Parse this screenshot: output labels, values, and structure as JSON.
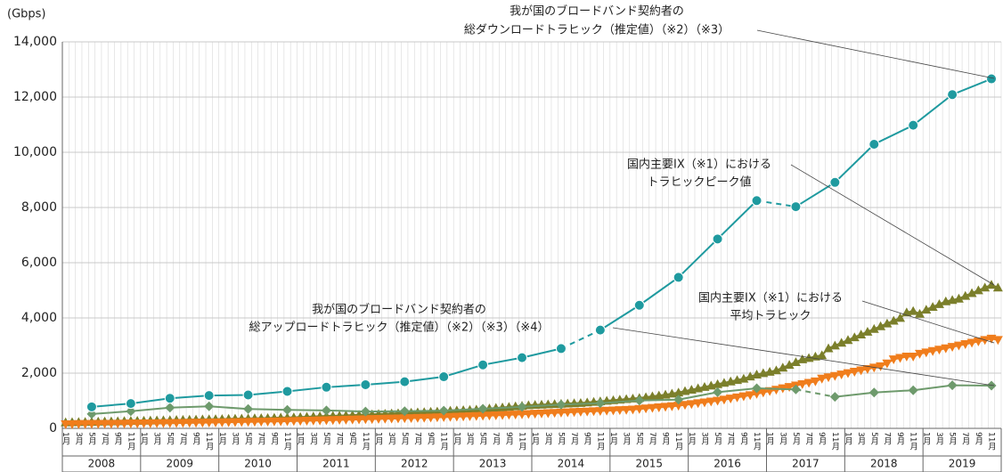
{
  "chart_data": {
    "type": "line",
    "unit": "(Gbps)",
    "ylim": [
      0,
      14000
    ],
    "yticks": [
      0,
      {
        "value": 2000,
        "label": "2,000"
      },
      {
        "value": 4000,
        "label": "4,000"
      },
      {
        "value": 6000,
        "label": "6,000"
      },
      {
        "value": 8000,
        "label": "8,000"
      },
      {
        "value": 10000,
        "label": "10,000"
      },
      {
        "value": 12000,
        "label": "12,000"
      },
      {
        "value": 14000,
        "label": "14,000"
      }
    ],
    "grid": true,
    "xlim": [
      "2008-01",
      "2019-12"
    ],
    "month_labels": [
      "1月",
      "3月",
      "5月",
      "7月",
      "9月",
      "11月"
    ],
    "years": [
      "2008",
      "2009",
      "2010",
      "2011",
      "2012",
      "2013",
      "2014",
      "2015",
      "2016",
      "2017",
      "2018",
      "2019"
    ],
    "x": [
      "2008-01",
      "2008-02",
      "2008-03",
      "2008-04",
      "2008-05",
      "2008-06",
      "2008-07",
      "2008-08",
      "2008-09",
      "2008-10",
      "2008-11",
      "2008-12",
      "2009-01",
      "2009-02",
      "2009-03",
      "2009-04",
      "2009-05",
      "2009-06",
      "2009-07",
      "2009-08",
      "2009-09",
      "2009-10",
      "2009-11",
      "2009-12",
      "2010-01",
      "2010-02",
      "2010-03",
      "2010-04",
      "2010-05",
      "2010-06",
      "2010-07",
      "2010-08",
      "2010-09",
      "2010-10",
      "2010-11",
      "2010-12",
      "2011-01",
      "2011-02",
      "2011-03",
      "2011-04",
      "2011-05",
      "2011-06",
      "2011-07",
      "2011-08",
      "2011-09",
      "2011-10",
      "2011-11",
      "2011-12",
      "2012-01",
      "2012-02",
      "2012-03",
      "2012-04",
      "2012-05",
      "2012-06",
      "2012-07",
      "2012-08",
      "2012-09",
      "2012-10",
      "2012-11",
      "2012-12",
      "2013-01",
      "2013-02",
      "2013-03",
      "2013-04",
      "2013-05",
      "2013-06",
      "2013-07",
      "2013-08",
      "2013-09",
      "2013-10",
      "2013-11",
      "2013-12",
      "2014-01",
      "2014-02",
      "2014-03",
      "2014-04",
      "2014-05",
      "2014-06",
      "2014-07",
      "2014-08",
      "2014-09",
      "2014-10",
      "2014-11",
      "2014-12",
      "2015-01",
      "2015-02",
      "2015-03",
      "2015-04",
      "2015-05",
      "2015-06",
      "2015-07",
      "2015-08",
      "2015-09",
      "2015-10",
      "2015-11",
      "2015-12",
      "2016-01",
      "2016-02",
      "2016-03",
      "2016-04",
      "2016-05",
      "2016-06",
      "2016-07",
      "2016-08",
      "2016-09",
      "2016-10",
      "2016-11",
      "2016-12",
      "2017-01",
      "2017-02",
      "2017-03",
      "2017-04",
      "2017-05",
      "2017-06",
      "2017-07",
      "2017-08",
      "2017-09",
      "2017-10",
      "2017-11",
      "2017-12",
      "2018-01",
      "2018-02",
      "2018-03",
      "2018-04",
      "2018-05",
      "2018-06",
      "2018-07",
      "2018-08",
      "2018-09",
      "2018-10",
      "2018-11",
      "2018-12",
      "2019-01",
      "2019-02",
      "2019-03",
      "2019-04",
      "2019-05",
      "2019-06",
      "2019-07",
      "2019-08",
      "2019-09",
      "2019-10",
      "2019-11",
      "2019-12"
    ],
    "series": [
      {
        "color": "#7b7f2b",
        "marker": "triangle-up",
        "values": [
          220,
          225,
          230,
          235,
          240,
          245,
          250,
          255,
          260,
          265,
          270,
          275,
          280,
          285,
          290,
          295,
          300,
          305,
          310,
          315,
          320,
          325,
          330,
          335,
          340,
          345,
          350,
          355,
          360,
          365,
          370,
          375,
          385,
          390,
          395,
          400,
          410,
          420,
          430,
          440,
          450,
          455,
          460,
          470,
          480,
          490,
          500,
          510,
          520,
          530,
          540,
          550,
          560,
          570,
          580,
          590,
          600,
          610,
          620,
          640,
          650,
          660,
          670,
          680,
          700,
          720,
          740,
          760,
          780,
          800,
          820,
          840,
          850,
          860,
          870,
          880,
          890,
          900,
          910,
          920,
          940,
          960,
          980,
          1000,
          1020,
          1040,
          1060,
          1080,
          1100,
          1130,
          1160,
          1190,
          1220,
          1260,
          1300,
          1350,
          1400,
          1450,
          1500,
          1550,
          1600,
          1650,
          1700,
          1750,
          1800,
          1880,
          1950,
          2000,
          2050,
          2100,
          2200,
          2300,
          2400,
          2500,
          2550,
          2600,
          2650,
          2900,
          3000,
          3100,
          3200,
          3300,
          3400,
          3500,
          3600,
          3700,
          3800,
          3900,
          4000,
          4200,
          4250,
          4150,
          4300,
          4400,
          4500,
          4600,
          4650,
          4700,
          4800,
          4900,
          5000,
          5100,
          5200,
          5100
        ]
      },
      {
        "color": "#f07d1c",
        "marker": "triangle-down",
        "values": [
          150,
          150,
          155,
          155,
          160,
          160,
          165,
          165,
          170,
          170,
          175,
          175,
          180,
          182,
          185,
          188,
          190,
          193,
          196,
          200,
          203,
          206,
          210,
          214,
          218,
          222,
          226,
          230,
          234,
          238,
          242,
          246,
          250,
          255,
          260,
          265,
          270,
          276,
          282,
          288,
          294,
          300,
          306,
          312,
          318,
          324,
          330,
          336,
          342,
          348,
          354,
          360,
          366,
          372,
          378,
          384,
          390,
          398,
          406,
          414,
          422,
          430,
          438,
          446,
          454,
          462,
          470,
          480,
          490,
          500,
          510,
          520,
          530,
          540,
          550,
          560,
          570,
          580,
          590,
          600,
          610,
          620,
          630,
          640,
          650,
          660,
          670,
          680,
          700,
          720,
          740,
          760,
          780,
          800,
          820,
          850,
          880,
          910,
          940,
          970,
          1000,
          1040,
          1080,
          1120,
          1160,
          1200,
          1250,
          1300,
          1350,
          1400,
          1450,
          1500,
          1550,
          1600,
          1650,
          1700,
          1800,
          1850,
          1900,
          1950,
          2000,
          2050,
          2100,
          2150,
          2200,
          2250,
          2350,
          2500,
          2550,
          2600,
          2600,
          2700,
          2750,
          2800,
          2850,
          2900,
          2950,
          3000,
          3050,
          3100,
          3150,
          3200,
          3250,
          3200
        ]
      },
      {
        "color": "#6e9a6c",
        "marker": "diamond",
        "dashed_after": [
          18
        ],
        "x": [
          "2008-05",
          "2008-11",
          "2009-05",
          "2009-11",
          "2010-05",
          "2010-11",
          "2011-05",
          "2011-11",
          "2012-05",
          "2012-11",
          "2013-05",
          "2013-11",
          "2014-05",
          "2014-11",
          "2015-05",
          "2015-11",
          "2016-05",
          "2016-11",
          "2017-05",
          "2017-11",
          "2018-05",
          "2018-11",
          "2019-05",
          "2019-11"
        ],
        "values": [
          520,
          620,
          750,
          800,
          700,
          670,
          650,
          610,
          620,
          640,
          710,
          780,
          860,
          910,
          1010,
          1040,
          1310,
          1450,
          1410,
          1140,
          1300,
          1380,
          1560,
          1550
        ]
      },
      {
        "color": "#1f9a9f",
        "marker": "circle",
        "dashed_after": [
          12,
          17
        ],
        "x": [
          "2008-05",
          "2008-11",
          "2009-05",
          "2009-11",
          "2010-05",
          "2010-11",
          "2011-05",
          "2011-11",
          "2012-05",
          "2012-11",
          "2013-05",
          "2013-11",
          "2014-05",
          "2014-11",
          "2015-05",
          "2015-11",
          "2016-05",
          "2016-11",
          "2017-05",
          "2017-11",
          "2018-05",
          "2018-11",
          "2019-05",
          "2019-11"
        ],
        "values": [
          780,
          900,
          1090,
          1190,
          1210,
          1340,
          1490,
          1580,
          1690,
          1870,
          2300,
          2560,
          2890,
          3560,
          4460,
          5470,
          6860,
          8250,
          8030,
          8910,
          10290,
          10980,
          12090,
          12660
        ]
      }
    ],
    "annotations": [
      {
        "lines": [
          "我が国のブロードバンド契約者の",
          "総ダウンロードトラヒック（推定値）（※2）（※3）"
        ]
      },
      {
        "lines": [
          "国内主要IX（※1）における",
          "トラヒックピーク値"
        ]
      },
      {
        "lines": [
          "国内主要IX（※1）における",
          "平均トラヒック"
        ]
      },
      {
        "lines": [
          "我が国のブロードバンド契約者の",
          "総アップロードトラヒック（推定値）（※2）（※3）（※4）"
        ]
      }
    ]
  }
}
